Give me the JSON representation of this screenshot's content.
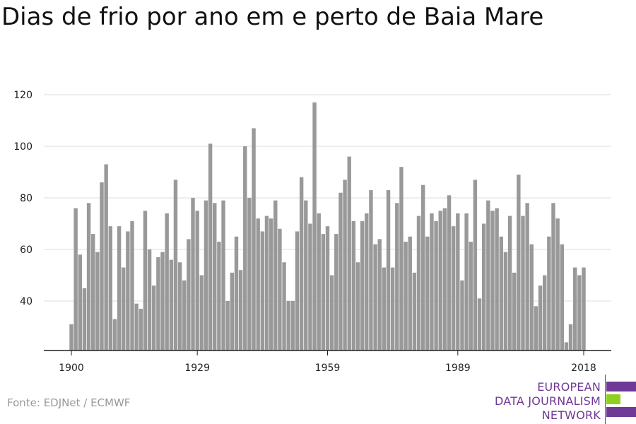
{
  "title": "Dias de frio por ano em e perto de Baia Mare",
  "source": "Fonte: EDJNet / ECMWF",
  "logo": {
    "lines": [
      "EUROPEAN",
      "DATA JOURNALISM",
      "NETWORK"
    ],
    "colors": {
      "purple": "#6f3a96",
      "green": "#8fd01f"
    }
  },
  "colors": {
    "bar": "#999999",
    "axis": "#222222",
    "grid": "#dddddd"
  },
  "chart_data": {
    "type": "bar",
    "title": "Dias de frio por ano em e perto de Baia Mare",
    "xlabel": "",
    "ylabel": "",
    "ylim": [
      21,
      123
    ],
    "yticks": [
      40,
      60,
      80,
      100,
      120
    ],
    "xticks": [
      1900,
      1929,
      1959,
      1989,
      2018
    ],
    "grid": true,
    "x": [
      1900,
      1901,
      1902,
      1903,
      1904,
      1905,
      1906,
      1907,
      1908,
      1909,
      1910,
      1911,
      1912,
      1913,
      1914,
      1915,
      1916,
      1917,
      1918,
      1919,
      1920,
      1921,
      1922,
      1923,
      1924,
      1925,
      1926,
      1927,
      1928,
      1929,
      1930,
      1931,
      1932,
      1933,
      1934,
      1935,
      1936,
      1937,
      1938,
      1939,
      1940,
      1941,
      1942,
      1943,
      1944,
      1945,
      1946,
      1947,
      1948,
      1949,
      1950,
      1951,
      1952,
      1953,
      1954,
      1955,
      1956,
      1957,
      1958,
      1959,
      1960,
      1961,
      1962,
      1963,
      1964,
      1965,
      1966,
      1967,
      1968,
      1969,
      1970,
      1971,
      1972,
      1973,
      1974,
      1975,
      1976,
      1977,
      1978,
      1979,
      1980,
      1981,
      1982,
      1983,
      1984,
      1985,
      1986,
      1987,
      1988,
      1989,
      1990,
      1991,
      1992,
      1993,
      1994,
      1995,
      1996,
      1997,
      1998,
      1999,
      2000,
      2001,
      2002,
      2003,
      2004,
      2005,
      2006,
      2007,
      2008,
      2009,
      2010,
      2011,
      2012,
      2013,
      2014,
      2015,
      2016,
      2017,
      2018
    ],
    "values": [
      31,
      76,
      58,
      45,
      78,
      66,
      59,
      86,
      93,
      69,
      33,
      69,
      53,
      67,
      71,
      39,
      37,
      75,
      60,
      46,
      57,
      59,
      74,
      56,
      87,
      55,
      48,
      64,
      80,
      75,
      50,
      79,
      101,
      78,
      63,
      79,
      40,
      51,
      65,
      52,
      100,
      80,
      107,
      72,
      67,
      73,
      72,
      79,
      68,
      55,
      40,
      40,
      67,
      88,
      79,
      70,
      117,
      74,
      66,
      69,
      50,
      66,
      82,
      87,
      96,
      71,
      55,
      71,
      74,
      83,
      62,
      64,
      53,
      83,
      53,
      78,
      92,
      63,
      65,
      51,
      73,
      85,
      65,
      74,
      71,
      75,
      76,
      81,
      69,
      74,
      48,
      74,
      63,
      87,
      41,
      70,
      79,
      75,
      76,
      65,
      59,
      73,
      51,
      89,
      73,
      78,
      62,
      38,
      46,
      50,
      65,
      78,
      72,
      62,
      24,
      31,
      53,
      50,
      53
    ]
  }
}
